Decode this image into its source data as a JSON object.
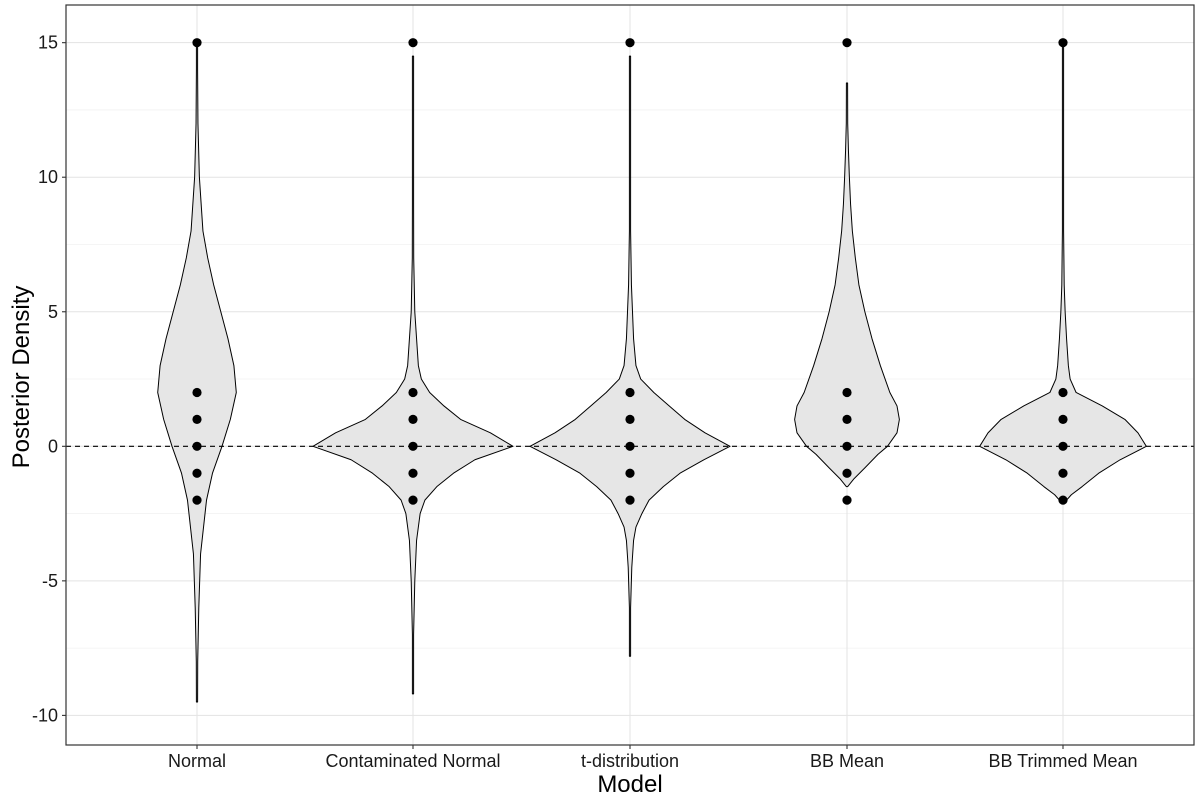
{
  "chart_data": {
    "type": "violin",
    "xlabel": "Model",
    "ylabel": "Posterior Density",
    "ylim": [
      -11.1,
      16.4
    ],
    "y_ticks": [
      -10,
      -5,
      0,
      5,
      10,
      15
    ],
    "reference_line": {
      "y": 0,
      "style": "dashed",
      "color": "#000000"
    },
    "grid": true,
    "violin_fill": "#e6e6e6",
    "violin_stroke": "#000000",
    "point_color": "#000000",
    "categories": [
      "Normal",
      "Contaminated Normal",
      "t-distribution",
      "BB Mean",
      "BB Trimmed Mean"
    ],
    "series": [
      {
        "category": "Normal",
        "points": [
          15,
          2,
          1,
          0,
          -1,
          -2
        ],
        "density": [
          [
            -9.5,
            0.02
          ],
          [
            -8,
            0.06
          ],
          [
            -6,
            0.15
          ],
          [
            -4,
            0.3
          ],
          [
            -2,
            0.8
          ],
          [
            -1,
            1.3
          ],
          [
            0,
            2.1
          ],
          [
            1,
            2.8
          ],
          [
            2,
            3.3
          ],
          [
            3,
            3.1
          ],
          [
            4,
            2.6
          ],
          [
            5,
            2.0
          ],
          [
            6,
            1.4
          ],
          [
            7,
            0.9
          ],
          [
            8,
            0.5
          ],
          [
            10,
            0.2
          ],
          [
            12,
            0.08
          ],
          [
            14,
            0.04
          ],
          [
            15,
            0.02
          ]
        ]
      },
      {
        "category": "Contaminated Normal",
        "points": [
          15,
          2,
          1,
          0,
          -1,
          -2
        ],
        "density": [
          [
            -9.2,
            0.02
          ],
          [
            -7,
            0.05
          ],
          [
            -5,
            0.15
          ],
          [
            -3.5,
            0.3
          ],
          [
            -2.5,
            0.6
          ],
          [
            -2,
            1.0
          ],
          [
            -1.5,
            2.0
          ],
          [
            -1,
            3.4
          ],
          [
            -0.5,
            5.2
          ],
          [
            0,
            8.4
          ],
          [
            0.5,
            6.5
          ],
          [
            1,
            4.0
          ],
          [
            1.5,
            2.6
          ],
          [
            2,
            1.4
          ],
          [
            2.5,
            0.7
          ],
          [
            3,
            0.45
          ],
          [
            4,
            0.3
          ],
          [
            5,
            0.15
          ],
          [
            7,
            0.06
          ],
          [
            9,
            0.03
          ],
          [
            12,
            0.02
          ],
          [
            14.5,
            0.01
          ]
        ]
      },
      {
        "category": "t-distribution",
        "points": [
          15,
          2,
          1,
          0,
          -1,
          -2
        ],
        "density": [
          [
            -7.8,
            0.02
          ],
          [
            -6,
            0.05
          ],
          [
            -4.5,
            0.15
          ],
          [
            -3.5,
            0.3
          ],
          [
            -3,
            0.5
          ],
          [
            -2.5,
            1.0
          ],
          [
            -2,
            1.6
          ],
          [
            -1.5,
            2.8
          ],
          [
            -1,
            4.2
          ],
          [
            -0.5,
            6.2
          ],
          [
            0,
            8.4
          ],
          [
            0.5,
            6.3
          ],
          [
            1,
            4.6
          ],
          [
            1.5,
            3.3
          ],
          [
            2,
            2.0
          ],
          [
            2.5,
            0.9
          ],
          [
            3,
            0.5
          ],
          [
            4,
            0.3
          ],
          [
            6,
            0.12
          ],
          [
            8,
            0.05
          ],
          [
            10,
            0.03
          ],
          [
            14.5,
            0.01
          ]
        ]
      },
      {
        "category": "BB Mean",
        "points": [
          15,
          2,
          1,
          0,
          -1,
          -2
        ],
        "density": [
          [
            -1.5,
            0.05
          ],
          [
            -1.2,
            0.6
          ],
          [
            -0.8,
            1.5
          ],
          [
            -0.3,
            2.6
          ],
          [
            0,
            3.4
          ],
          [
            0.5,
            4.2
          ],
          [
            1,
            4.4
          ],
          [
            1.5,
            4.2
          ],
          [
            2,
            3.6
          ],
          [
            3,
            2.8
          ],
          [
            4,
            2.1
          ],
          [
            5,
            1.5
          ],
          [
            6,
            1.0
          ],
          [
            7,
            0.7
          ],
          [
            8,
            0.45
          ],
          [
            9,
            0.3
          ],
          [
            10,
            0.2
          ],
          [
            11,
            0.12
          ],
          [
            12,
            0.06
          ],
          [
            13.5,
            0.02
          ]
        ]
      },
      {
        "category": "BB Trimmed Mean",
        "points": [
          15,
          2,
          1,
          0,
          -1,
          -2
        ],
        "density": [
          [
            -2.1,
            0.1
          ],
          [
            -1.8,
            0.7
          ],
          [
            -1.5,
            1.6
          ],
          [
            -1,
            3.0
          ],
          [
            -0.5,
            4.8
          ],
          [
            0,
            7.0
          ],
          [
            0.5,
            6.3
          ],
          [
            1,
            5.2
          ],
          [
            1.5,
            3.3
          ],
          [
            2,
            1.1
          ],
          [
            2.5,
            0.6
          ],
          [
            3,
            0.45
          ],
          [
            4,
            0.3
          ],
          [
            5,
            0.18
          ],
          [
            6,
            0.1
          ],
          [
            8,
            0.05
          ],
          [
            10,
            0.03
          ],
          [
            12,
            0.02
          ],
          [
            15,
            0.01
          ]
        ]
      }
    ]
  }
}
